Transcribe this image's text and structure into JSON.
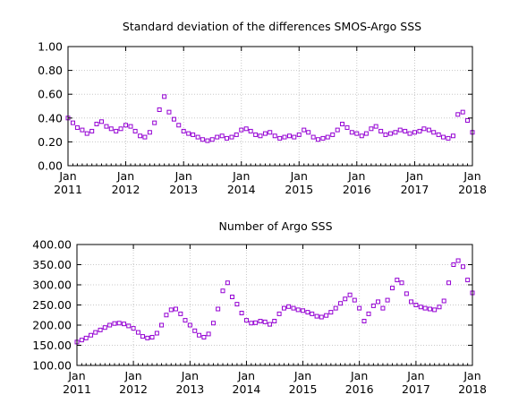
{
  "chart_data": [
    {
      "type": "scatter",
      "title": "Standard deviation of the differences SMOS-Argo SSS",
      "xlabel": "",
      "ylabel": "",
      "xlim": [
        "2011-01-01",
        "2018-01-01"
      ],
      "ylim": [
        0.0,
        1.0
      ],
      "yticks": [
        "0.00",
        "0.20",
        "0.40",
        "0.60",
        "0.80",
        "1.00"
      ],
      "xticks": [
        {
          "month": "Jan",
          "year": "2011"
        },
        {
          "month": "Jan",
          "year": "2012"
        },
        {
          "month": "Jan",
          "year": "2013"
        },
        {
          "month": "Jan",
          "year": "2014"
        },
        {
          "month": "Jan",
          "year": "2015"
        },
        {
          "month": "Jan",
          "year": "2016"
        },
        {
          "month": "Jan",
          "year": "2017"
        },
        {
          "month": "Jan",
          "year": "2018"
        }
      ],
      "grid": true,
      "marker": "open-square",
      "color": "#9400d3",
      "series": [
        {
          "x": [
            "2011-01-01",
            "2011-02-01",
            "2011-03-01",
            "2011-04-01",
            "2011-05-01",
            "2011-06-01",
            "2011-07-01",
            "2011-08-01",
            "2011-09-01",
            "2011-10-01",
            "2011-11-01",
            "2011-12-01",
            "2012-01-01",
            "2012-02-01",
            "2012-03-01",
            "2012-04-01",
            "2012-05-01",
            "2012-06-01",
            "2012-07-01",
            "2012-08-01",
            "2012-09-01",
            "2012-10-01",
            "2012-11-01",
            "2012-12-01",
            "2013-01-01",
            "2013-02-01",
            "2013-03-01",
            "2013-04-01",
            "2013-05-01",
            "2013-06-01",
            "2013-07-01",
            "2013-08-01",
            "2013-09-01",
            "2013-10-01",
            "2013-11-01",
            "2013-12-01",
            "2014-01-01",
            "2014-02-01",
            "2014-03-01",
            "2014-04-01",
            "2014-05-01",
            "2014-06-01",
            "2014-07-01",
            "2014-08-01",
            "2014-09-01",
            "2014-10-01",
            "2014-11-01",
            "2014-12-01",
            "2015-01-01",
            "2015-02-01",
            "2015-03-01",
            "2015-04-01",
            "2015-05-01",
            "2015-06-01",
            "2015-07-01",
            "2015-08-01",
            "2015-09-01",
            "2015-10-01",
            "2015-11-01",
            "2015-12-01",
            "2016-01-01",
            "2016-02-01",
            "2016-03-01",
            "2016-04-01",
            "2016-05-01",
            "2016-06-01",
            "2016-07-01",
            "2016-08-01",
            "2016-09-01",
            "2016-10-01",
            "2016-11-01",
            "2016-12-01",
            "2017-01-01",
            "2017-02-01",
            "2017-03-01",
            "2017-04-01",
            "2017-05-01",
            "2017-06-01",
            "2017-07-01",
            "2017-08-01",
            "2017-09-01",
            "2017-10-01",
            "2017-11-01",
            "2017-12-01",
            "2018-01-01"
          ],
          "values": [
            0.4,
            0.36,
            0.32,
            0.3,
            0.27,
            0.29,
            0.35,
            0.37,
            0.33,
            0.31,
            0.29,
            0.31,
            0.34,
            0.33,
            0.29,
            0.25,
            0.24,
            0.28,
            0.36,
            0.47,
            0.58,
            0.45,
            0.39,
            0.34,
            0.29,
            0.27,
            0.26,
            0.24,
            0.22,
            0.21,
            0.22,
            0.24,
            0.25,
            0.23,
            0.24,
            0.26,
            0.3,
            0.31,
            0.29,
            0.26,
            0.25,
            0.27,
            0.28,
            0.25,
            0.23,
            0.24,
            0.25,
            0.24,
            0.26,
            0.3,
            0.28,
            0.24,
            0.22,
            0.23,
            0.24,
            0.26,
            0.3,
            0.35,
            0.32,
            0.28,
            0.27,
            0.25,
            0.27,
            0.31,
            0.33,
            0.29,
            0.26,
            0.27,
            0.28,
            0.3,
            0.29,
            0.27,
            0.28,
            0.29,
            0.31,
            0.3,
            0.28,
            0.26,
            0.24,
            0.23,
            0.25,
            0.43,
            0.45,
            0.38,
            0.28
          ]
        }
      ]
    },
    {
      "type": "scatter",
      "title": "Number of Argo SSS",
      "xlabel": "",
      "ylabel": "",
      "xlim": [
        "2011-01-01",
        "2018-01-01"
      ],
      "ylim": [
        100,
        400
      ],
      "yticks": [
        "100.00",
        "150.00",
        "200.00",
        "250.00",
        "300.00",
        "350.00",
        "400.00"
      ],
      "xticks": [
        {
          "month": "Jan",
          "year": "2011"
        },
        {
          "month": "Jan",
          "year": "2012"
        },
        {
          "month": "Jan",
          "year": "2013"
        },
        {
          "month": "Jan",
          "year": "2014"
        },
        {
          "month": "Jan",
          "year": "2015"
        },
        {
          "month": "Jan",
          "year": "2016"
        },
        {
          "month": "Jan",
          "year": "2017"
        },
        {
          "month": "Jan",
          "year": "2018"
        }
      ],
      "grid": true,
      "marker": "open-square",
      "color": "#9400d3",
      "series": [
        {
          "x": [
            "2011-01-01",
            "2011-02-01",
            "2011-03-01",
            "2011-04-01",
            "2011-05-01",
            "2011-06-01",
            "2011-07-01",
            "2011-08-01",
            "2011-09-01",
            "2011-10-01",
            "2011-11-01",
            "2011-12-01",
            "2012-01-01",
            "2012-02-01",
            "2012-03-01",
            "2012-04-01",
            "2012-05-01",
            "2012-06-01",
            "2012-07-01",
            "2012-08-01",
            "2012-09-01",
            "2012-10-01",
            "2012-11-01",
            "2012-12-01",
            "2013-01-01",
            "2013-02-01",
            "2013-03-01",
            "2013-04-01",
            "2013-05-01",
            "2013-06-01",
            "2013-07-01",
            "2013-08-01",
            "2013-09-01",
            "2013-10-01",
            "2013-11-01",
            "2013-12-01",
            "2014-01-01",
            "2014-02-01",
            "2014-03-01",
            "2014-04-01",
            "2014-05-01",
            "2014-06-01",
            "2014-07-01",
            "2014-08-01",
            "2014-09-01",
            "2014-10-01",
            "2014-11-01",
            "2014-12-01",
            "2015-01-01",
            "2015-02-01",
            "2015-03-01",
            "2015-04-01",
            "2015-05-01",
            "2015-06-01",
            "2015-07-01",
            "2015-08-01",
            "2015-09-01",
            "2015-10-01",
            "2015-11-01",
            "2015-12-01",
            "2016-01-01",
            "2016-02-01",
            "2016-03-01",
            "2016-04-01",
            "2016-05-01",
            "2016-06-01",
            "2016-07-01",
            "2016-08-01",
            "2016-09-01",
            "2016-10-01",
            "2016-11-01",
            "2016-12-01",
            "2017-01-01",
            "2017-02-01",
            "2017-03-01",
            "2017-04-01",
            "2017-05-01",
            "2017-06-01",
            "2017-07-01",
            "2017-08-01",
            "2017-09-01",
            "2017-10-01",
            "2017-11-01",
            "2017-12-01",
            "2018-01-01"
          ],
          "values": [
            158,
            163,
            168,
            175,
            182,
            188,
            194,
            200,
            204,
            205,
            203,
            198,
            192,
            182,
            172,
            168,
            170,
            180,
            200,
            225,
            238,
            240,
            228,
            212,
            200,
            186,
            175,
            170,
            178,
            205,
            240,
            285,
            305,
            270,
            252,
            230,
            212,
            205,
            206,
            210,
            208,
            202,
            210,
            228,
            242,
            246,
            242,
            238,
            236,
            232,
            228,
            222,
            220,
            224,
            232,
            242,
            254,
            265,
            275,
            262,
            242,
            210,
            228,
            248,
            258,
            242,
            262,
            292,
            312,
            305,
            278,
            258,
            250,
            245,
            242,
            240,
            238,
            245,
            260,
            305,
            350,
            360,
            345,
            312,
            280
          ]
        }
      ]
    }
  ]
}
